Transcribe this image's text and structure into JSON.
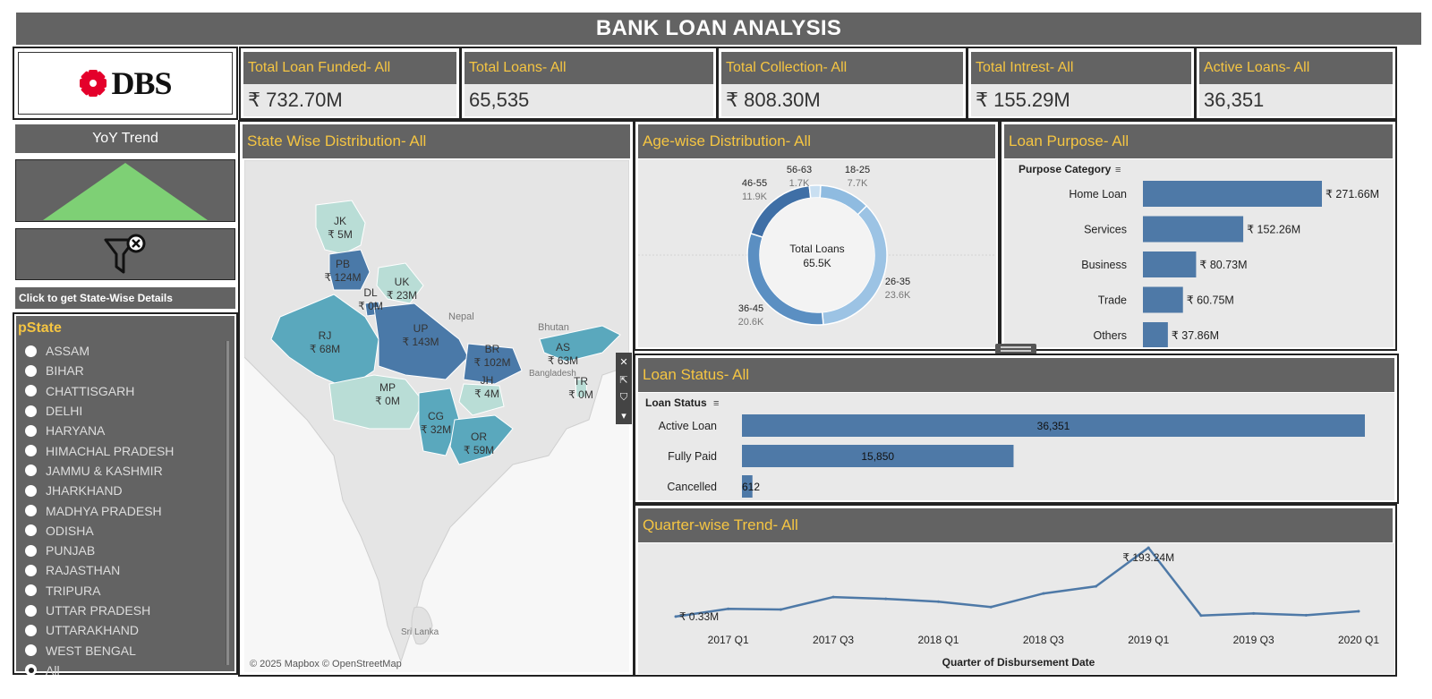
{
  "title": "BANK LOAN ANALYSIS",
  "logo": {
    "text": "DBS"
  },
  "kpis": [
    {
      "label": "Total Loan Funded- All",
      "value": "₹ 732.70M"
    },
    {
      "label": "Total Loans- All",
      "value": "65,535"
    },
    {
      "label": "Total Collection- All",
      "value": "₹ 808.30M"
    },
    {
      "label": "Total Intrest- All",
      "value": "₹ 155.29M"
    },
    {
      "label": "Active Loans- All",
      "value": "36,351"
    }
  ],
  "sidebar": {
    "yoy_label": "YoY Trend",
    "filter_icon": "clear-filter-icon",
    "state_details_label": "Click to get State-Wise Details",
    "param_title": "pState",
    "states": [
      "ASSAM",
      "BIHAR",
      "CHATTISGARH",
      "DELHI",
      "HARYANA",
      "HIMACHAL PRADESH",
      "JAMMU & KASHMIR",
      "JHARKHAND",
      "MADHYA PRADESH",
      "ODISHA",
      "PUNJAB",
      "RAJASTHAN",
      "TRIPURA",
      "UTTAR PRADESH",
      "UTTARAKHAND",
      "WEST BENGAL",
      "All"
    ],
    "selected": "All"
  },
  "map": {
    "title": "State Wise Distribution- All",
    "attribution": "© 2025 Mapbox © OpenStreetMap",
    "country_labels": [
      "Nepal",
      "Bhutan",
      "Bangladesh",
      "Sri Lanka"
    ],
    "states": [
      {
        "code": "JK",
        "value": "₹ 5M"
      },
      {
        "code": "PB",
        "value": "₹ 124M"
      },
      {
        "code": "UK",
        "value": "₹ 23M"
      },
      {
        "code": "DL",
        "value": "₹ 0M"
      },
      {
        "code": "RJ",
        "value": "₹ 68M"
      },
      {
        "code": "UP",
        "value": "₹ 143M"
      },
      {
        "code": "BR",
        "value": "₹ 102M"
      },
      {
        "code": "AS",
        "value": "₹ 63M"
      },
      {
        "code": "TR",
        "value": "₹ 0M"
      },
      {
        "code": "MP",
        "value": "₹ 0M"
      },
      {
        "code": "JH",
        "value": "₹ 4M"
      },
      {
        "code": "CG",
        "value": "₹ 32M"
      },
      {
        "code": "OR",
        "value": "₹ 59M"
      }
    ]
  },
  "age": {
    "title": "Age-wise Distribution- All",
    "center_label": "Total Loans",
    "center_value": "65.5K",
    "segments": [
      {
        "label": "18-25",
        "value": 7.7,
        "text": "7.7K",
        "color": "#8fbbe0"
      },
      {
        "label": "26-35",
        "value": 23.6,
        "text": "23.6K",
        "color": "#9cc3e4"
      },
      {
        "label": "36-45",
        "value": 20.6,
        "text": "20.6K",
        "color": "#5b8fc2"
      },
      {
        "label": "46-55",
        "value": 11.9,
        "text": "11.9K",
        "color": "#3f6fa6"
      },
      {
        "label": "56-63",
        "value": 1.7,
        "text": "1.7K",
        "color": "#c9dff1"
      }
    ]
  },
  "purpose": {
    "title": "Loan Purpose- All",
    "column_header": "Purpose Category",
    "items": [
      {
        "label": "Home Loan",
        "value": 271.66,
        "text": "₹ 271.66M"
      },
      {
        "label": "Services",
        "value": 152.26,
        "text": "₹ 152.26M"
      },
      {
        "label": "Business",
        "value": 80.73,
        "text": "₹ 80.73M"
      },
      {
        "label": "Trade",
        "value": 60.75,
        "text": "₹ 60.75M"
      },
      {
        "label": "Others",
        "value": 37.86,
        "text": "₹ 37.86M"
      }
    ]
  },
  "status": {
    "title": "Loan Status- All",
    "column_header": "Loan Status",
    "items": [
      {
        "label": "Active Loan",
        "value": 36351,
        "text": "36,351"
      },
      {
        "label": "Fully Paid",
        "value": 15850,
        "text": "15,850"
      },
      {
        "label": "Cancelled",
        "value": 612,
        "text": "612"
      }
    ]
  },
  "quarter": {
    "title": "Quarter-wise Trend- All",
    "xlabel": "Quarter of Disbursement Date",
    "tick_labels": [
      "2017 Q1",
      "2017 Q3",
      "2018 Q1",
      "2018 Q3",
      "2019 Q1",
      "2019 Q3",
      "2020 Q1"
    ],
    "max_label": "₹ 193.24M",
    "min_label": "₹ 0.33M"
  },
  "chart_data": [
    {
      "type": "line",
      "title": "Quarter-wise Trend- All",
      "xlabel": "Quarter of Disbursement Date",
      "x": [
        "2016 Q4",
        "2017 Q1",
        "2017 Q2",
        "2017 Q3",
        "2017 Q4",
        "2018 Q1",
        "2018 Q2",
        "2018 Q3",
        "2018 Q4",
        "2019 Q1",
        "2019 Q2",
        "2019 Q3",
        "2019 Q4",
        "2020 Q1"
      ],
      "values": [
        0.33,
        22,
        20,
        55,
        50,
        42,
        27,
        65,
        85,
        193.24,
        3,
        9,
        4,
        15
      ]
    },
    {
      "type": "bar",
      "title": "Loan Purpose- All",
      "categories": [
        "Home Loan",
        "Services",
        "Business",
        "Trade",
        "Others"
      ],
      "values": [
        271.66,
        152.26,
        80.73,
        60.75,
        37.86
      ]
    },
    {
      "type": "bar",
      "title": "Loan Status- All",
      "categories": [
        "Active Loan",
        "Fully Paid",
        "Cancelled"
      ],
      "values": [
        36351,
        15850,
        612
      ]
    },
    {
      "type": "pie",
      "title": "Age-wise Distribution- All",
      "categories": [
        "18-25",
        "26-35",
        "36-45",
        "46-55",
        "56-63"
      ],
      "values": [
        7.7,
        23.6,
        20.6,
        11.9,
        1.7
      ]
    }
  ]
}
